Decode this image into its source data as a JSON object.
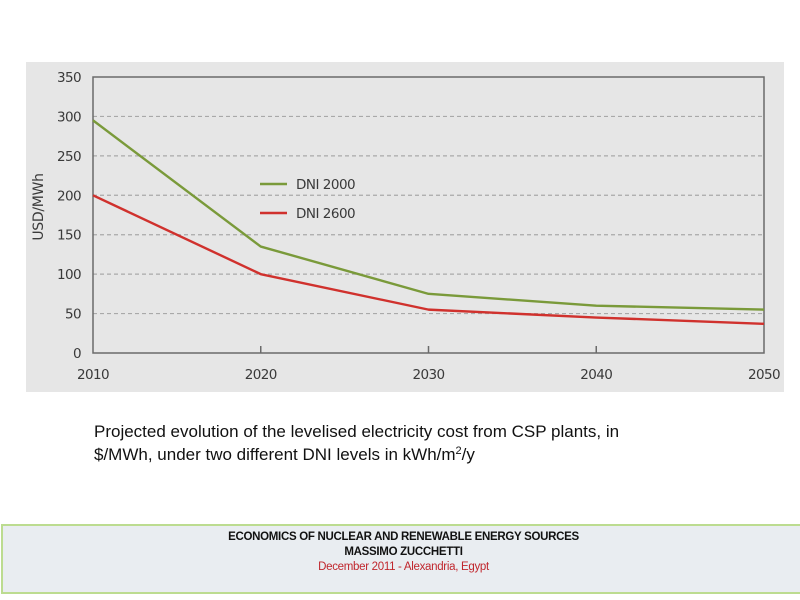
{
  "chart_data": {
    "type": "line",
    "title": "",
    "xlabel": "",
    "ylabel": "USD/MWh",
    "x": [
      2010,
      2020,
      2030,
      2040,
      2050
    ],
    "xticks": [
      "2010",
      "2020",
      "2030",
      "2040",
      "2050"
    ],
    "yticks": [
      "0",
      "50",
      "100",
      "150",
      "200",
      "250",
      "300",
      "350"
    ],
    "ytick_values": [
      0,
      50,
      100,
      150,
      200,
      250,
      300,
      350
    ],
    "ylim": [
      0,
      350
    ],
    "xlim": [
      2010,
      2050
    ],
    "grid": "horizontal-dashed",
    "legend_position": "center-left",
    "series": [
      {
        "name": "DNI 2000",
        "color": "#7a9a3a",
        "values": [
          295,
          135,
          75,
          60,
          55
        ]
      },
      {
        "name": "DNI 2600",
        "color": "#d0312d",
        "values": [
          200,
          100,
          55,
          45,
          37
        ]
      }
    ]
  },
  "caption": {
    "line1": "Projected evolution of the levelised electricity cost from CSP plants, in",
    "line2_pre": "$/MWh, under two different DNI levels in kWh/m",
    "line2_sup": "2",
    "line2_post": "/y"
  },
  "footer": {
    "title": "ECONOMICS OF NUCLEAR AND RENEWABLE ENERGY SOURCES",
    "author": "MASSIMO ZUCCHETTI",
    "date_place": "December 2011 - Alexandria, Egypt"
  }
}
